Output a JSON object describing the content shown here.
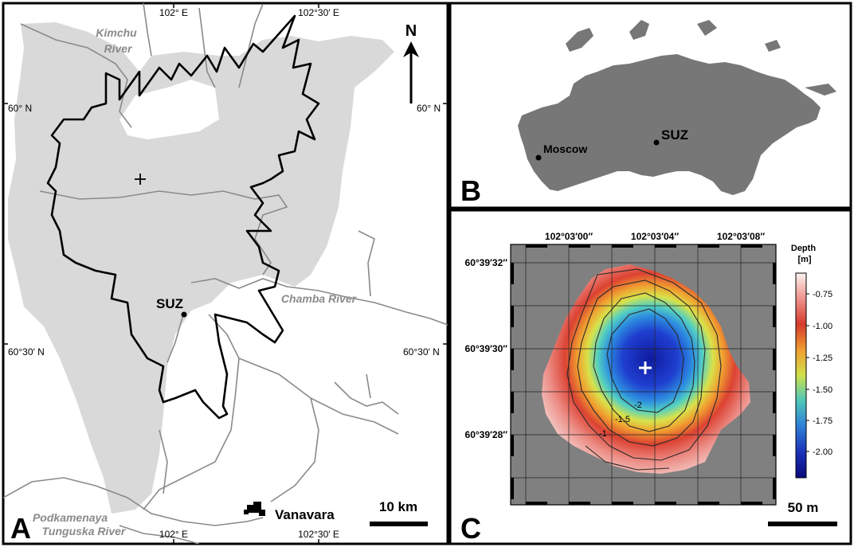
{
  "panel_a": {
    "label": "A",
    "lon_labels": [
      "102° E",
      "102°30′ E",
      "102° E",
      "102°30′ E"
    ],
    "lat_labels": [
      "60° N",
      "60° N",
      "60°30′ N",
      "60°30′ N"
    ],
    "rivers": [
      "Kimchu River",
      "Chamba River",
      "Podkamenaya Tunguska River"
    ],
    "river_lines": {
      "kimchu": [
        "Kimchu",
        "River"
      ],
      "podkamenaya": [
        "Podkamenaya",
        "Tunguska River"
      ]
    },
    "places": {
      "suz": "SUZ",
      "vanavara": "Vanavara"
    },
    "north": "N",
    "scale": "10 km"
  },
  "panel_b": {
    "label": "B",
    "places": [
      "Moscow",
      "SUZ"
    ]
  },
  "panel_c": {
    "label": "C",
    "lon_labels": [
      "102°03′00″",
      "102°03′04″",
      "102°03′08″"
    ],
    "lat_labels": [
      "60°39′32″",
      "60°39′30″",
      "60°39′28″"
    ],
    "contour_labels": [
      "-2",
      "-1.5",
      "-1"
    ],
    "legend": {
      "title_lines": [
        "Depth",
        "[m]"
      ],
      "ticks": [
        "-0.75",
        "-1.00",
        "-1.25",
        "-1.50",
        "-1.75",
        "-2.00"
      ]
    },
    "scale": "50 m"
  },
  "colors": {
    "land_fill": "#d9d9d9",
    "river": "#8a8a8a",
    "map_bg": "#808080",
    "depth_shallow": "#fbf1ef",
    "depth_deep": "#0a0a7a"
  }
}
